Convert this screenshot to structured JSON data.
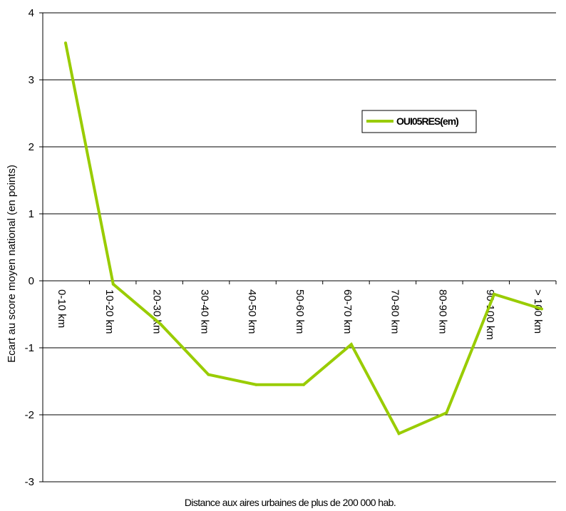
{
  "chart_data": {
    "type": "line",
    "categories": [
      "0-10 km",
      "10-20 km",
      "20-30 km",
      "30-40 km",
      "40-50 km",
      "50-60 km",
      "60-70 km",
      "70-80 km",
      "80-90 km",
      "90-100 km",
      "> 100 km"
    ],
    "series": [
      {
        "name": "OUI05RES(em)",
        "values": [
          3.55,
          -0.05,
          -0.65,
          -1.4,
          -1.55,
          -1.55,
          -0.95,
          -2.28,
          -1.97,
          -0.2,
          -0.42
        ],
        "color": "#99cc00"
      }
    ],
    "xlabel": "Distance aux aires urbaines de plus de 200 000 hab.",
    "ylabel": "Ecart au score moyen national  (en points)",
    "ylim": [
      -3,
      4
    ],
    "yticks": [
      4,
      3,
      2,
      1,
      0,
      -1,
      -2,
      -3
    ],
    "grid": true,
    "legend_position": "right"
  }
}
